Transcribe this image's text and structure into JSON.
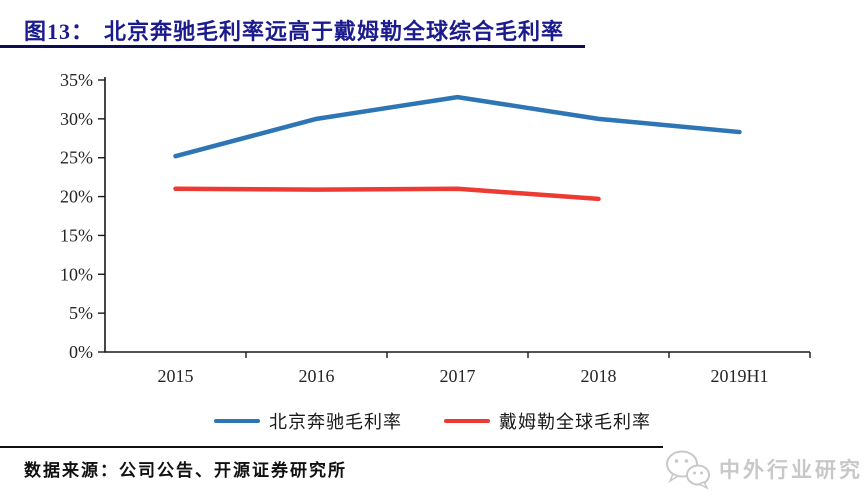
{
  "header": {
    "figure_label": "图13：",
    "title": "北京奔驰毛利率远高于戴姆勒全球综合毛利率"
  },
  "chart_data": {
    "type": "line",
    "title": "北京奔驰毛利率远高于戴姆勒全球综合毛利率",
    "categories": [
      "2015",
      "2016",
      "2017",
      "2018",
      "2019H1"
    ],
    "series": [
      {
        "name": "北京奔驰毛利率",
        "color": "#2E75B6",
        "values": [
          25.2,
          30.0,
          32.8,
          30.0,
          28.3
        ]
      },
      {
        "name": "戴姆勒全球毛利率",
        "color": "#ED3B33",
        "values": [
          21.0,
          20.9,
          21.0,
          19.7,
          null
        ]
      }
    ],
    "xlabel": "",
    "ylabel": "",
    "ylim": [
      0,
      35
    ],
    "ytick_step": 5,
    "ytick_labels": [
      "0%",
      "5%",
      "10%",
      "15%",
      "20%",
      "25%",
      "30%",
      "35%"
    ],
    "grid": false,
    "legend_position": "bottom"
  },
  "footer": {
    "source": "数据来源：公司公告、开源证券研究所",
    "watermark": "中外行业研究"
  }
}
